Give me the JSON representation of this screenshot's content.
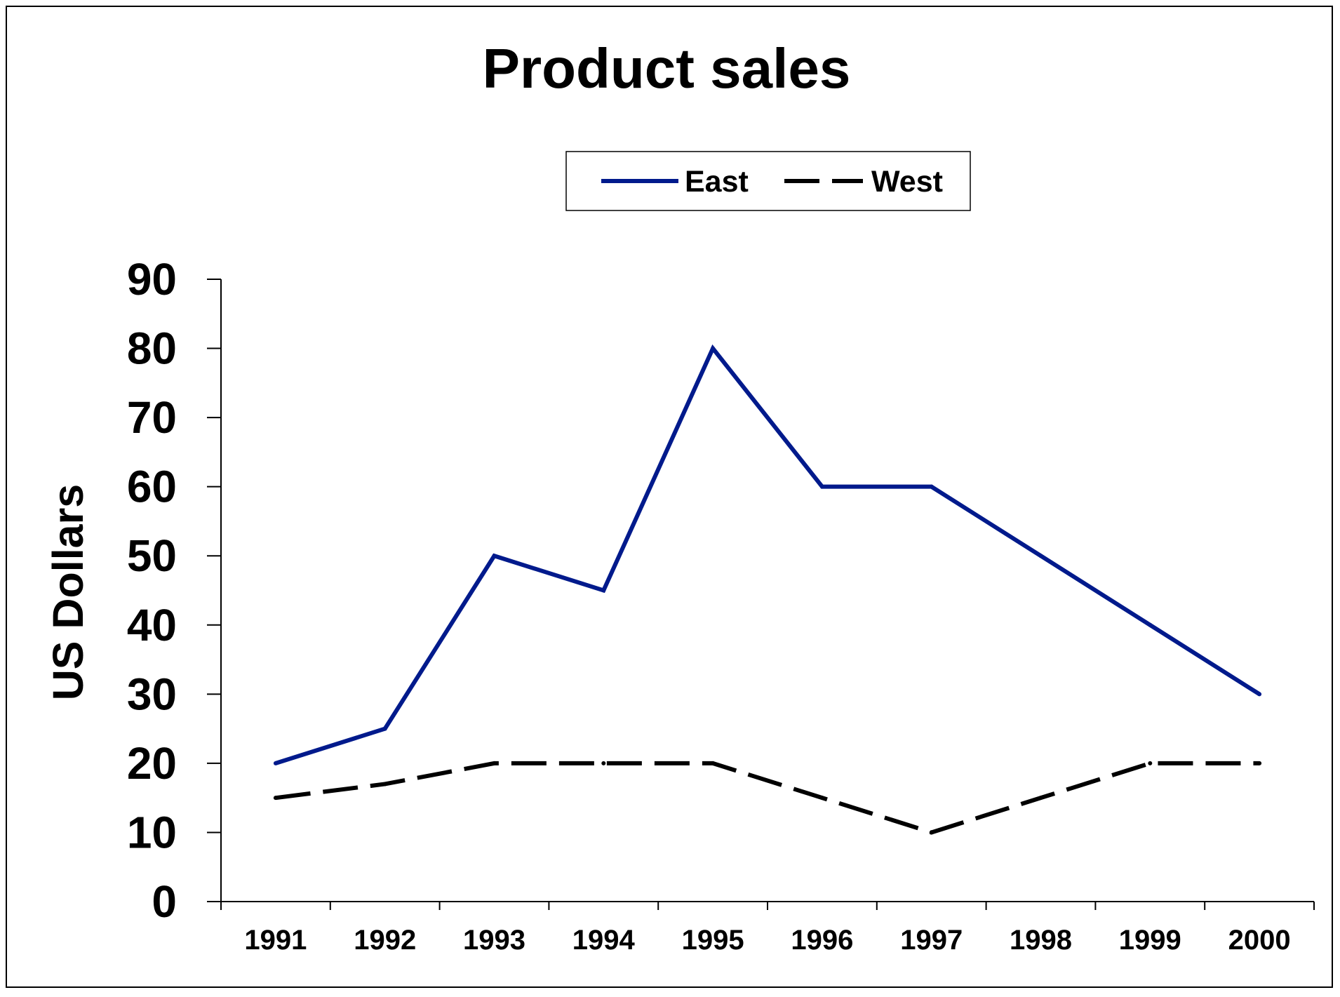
{
  "chart_data": {
    "type": "line",
    "title": "Product sales",
    "xlabel": "",
    "ylabel": "US Dollars",
    "categories": [
      "1991",
      "1992",
      "1993",
      "1994",
      "1995",
      "1996",
      "1997",
      "1998",
      "1999",
      "2000"
    ],
    "y_ticks": [
      "0",
      "10",
      "20",
      "30",
      "40",
      "50",
      "60",
      "70",
      "80",
      "90"
    ],
    "ylim": [
      0,
      90
    ],
    "grid": false,
    "legend_position": "top-center",
    "series": [
      {
        "name": "East",
        "values": [
          20,
          25,
          50,
          45,
          80,
          60,
          60,
          50,
          40,
          30
        ],
        "color": "#001a8c",
        "line_style": "solid"
      },
      {
        "name": "West",
        "values": [
          15,
          17,
          20,
          20,
          20,
          15,
          10,
          15,
          20,
          20
        ],
        "color": "#000000",
        "line_style": "dashed"
      }
    ]
  }
}
